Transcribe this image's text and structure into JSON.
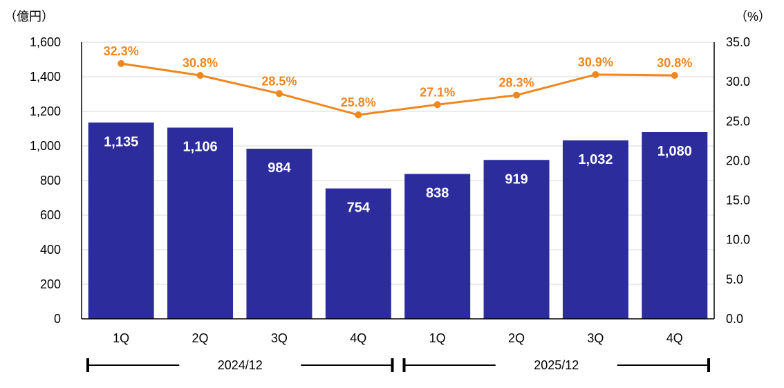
{
  "chart_data": {
    "type": "bar",
    "title": "",
    "left_axis_unit": "（億円）",
    "right_axis_unit": "（%）",
    "ylim": [
      0,
      1600
    ],
    "y2lim": [
      0,
      35
    ],
    "y_ticks": [
      "0",
      "200",
      "400",
      "600",
      "800",
      "1,000",
      "1,200",
      "1,400",
      "1,600"
    ],
    "y2_ticks": [
      "0.0",
      "5.0",
      "10.0",
      "15.0",
      "20.0",
      "25.0",
      "30.0",
      "35.0"
    ],
    "categories": [
      "1Q",
      "2Q",
      "3Q",
      "4Q",
      "1Q",
      "2Q",
      "3Q",
      "4Q"
    ],
    "periods": [
      {
        "label": "2024/12",
        "categories": [
          "1Q",
          "2Q",
          "3Q",
          "4Q"
        ]
      },
      {
        "label": "2025/12",
        "categories": [
          "1Q",
          "2Q",
          "3Q",
          "4Q"
        ]
      }
    ],
    "series": [
      {
        "name": "bars",
        "type": "bar",
        "axis": "left",
        "values": [
          1135,
          1106,
          984,
          754,
          838,
          919,
          1032,
          1080
        ],
        "labels": [
          "1,135",
          "1,106",
          "984",
          "754",
          "838",
          "919",
          "1,032",
          "1,080"
        ],
        "color": "#2c2c9c"
      },
      {
        "name": "line",
        "type": "line",
        "axis": "right",
        "values": [
          32.3,
          30.8,
          28.5,
          25.8,
          27.1,
          28.3,
          30.9,
          30.8
        ],
        "labels": [
          "32.3%",
          "30.8%",
          "28.5%",
          "25.8%",
          "27.1%",
          "28.3%",
          "30.9%",
          "30.8%"
        ],
        "color": "#f0861e"
      }
    ],
    "grid": true,
    "gridline_color": "#d9d9d9",
    "axis_color": "#000000"
  }
}
